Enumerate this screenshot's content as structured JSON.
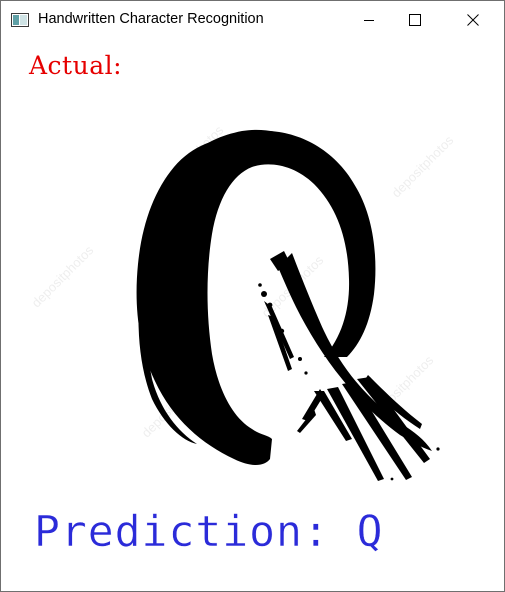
{
  "window": {
    "title": "Handwritten Character Recognition",
    "icon": "app-window-icon"
  },
  "title_buttons": {
    "minimize_icon": "minimize-icon",
    "maximize_icon": "maximize-icon",
    "close_icon": "close-icon"
  },
  "canvas": {
    "actual_label": "Actual:",
    "prediction_label": "Prediction: Q",
    "glyph_image": "handwritten-letter-Q-image",
    "watermark_text": "depositphotos"
  },
  "colors": {
    "actual": "#e60000",
    "prediction": "#2b2bd9",
    "ink": "#000000"
  }
}
